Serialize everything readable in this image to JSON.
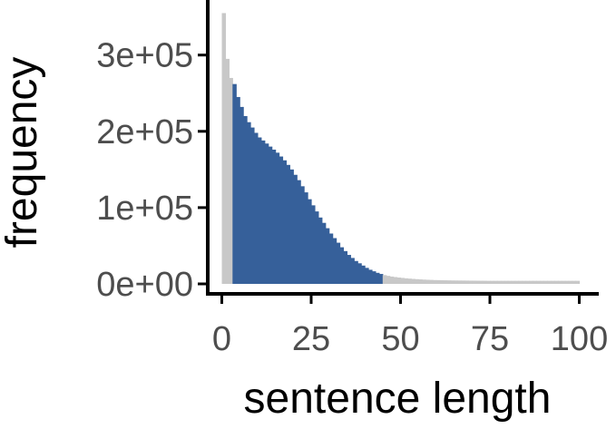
{
  "chart_data": {
    "type": "bar",
    "title": "",
    "xlabel": "sentence length",
    "ylabel": "frequency",
    "xlim": [
      -2,
      103
    ],
    "ylim": [
      0,
      360000
    ],
    "grid": false,
    "x_ticks": [
      0,
      25,
      50,
      75,
      100
    ],
    "x_tick_labels": [
      "0",
      "25",
      "50",
      "75",
      "100"
    ],
    "y_ticks": [
      0,
      100000,
      200000,
      300000
    ],
    "y_tick_labels": [
      "0e+00",
      "1e+05",
      "2e+05",
      "3e+05"
    ],
    "highlight_range": [
      4,
      45
    ],
    "colors": {
      "highlight": "#36609a",
      "other": "#c8c8c8",
      "axis": "#000000",
      "tick_text": "#4d4d4d"
    },
    "x": [
      1,
      2,
      3,
      4,
      5,
      6,
      7,
      8,
      9,
      10,
      11,
      12,
      13,
      14,
      15,
      16,
      17,
      18,
      19,
      20,
      21,
      22,
      23,
      24,
      25,
      26,
      27,
      28,
      29,
      30,
      31,
      32,
      33,
      34,
      35,
      36,
      37,
      38,
      39,
      40,
      41,
      42,
      43,
      44,
      45,
      46,
      47,
      48,
      49,
      50,
      51,
      52,
      53,
      54,
      55,
      56,
      57,
      58,
      59,
      60,
      61,
      62,
      63,
      64,
      65,
      66,
      67,
      68,
      69,
      70,
      71,
      72,
      73,
      74,
      75,
      76,
      77,
      78,
      79,
      80,
      81,
      82,
      83,
      84,
      85,
      86,
      87,
      88,
      89,
      90,
      91,
      92,
      93,
      94,
      95,
      96,
      97,
      98,
      99,
      100
    ],
    "values": [
      355000,
      295000,
      270000,
      262000,
      245000,
      232000,
      220000,
      212000,
      205000,
      198000,
      192000,
      188000,
      184000,
      180000,
      176000,
      172000,
      167000,
      162000,
      156000,
      150000,
      143000,
      136000,
      128000,
      120000,
      111000,
      103000,
      95000,
      87000,
      80000,
      73000,
      66000,
      60000,
      54000,
      48000,
      43000,
      38000,
      34000,
      30000,
      27000,
      24000,
      21000,
      18500,
      16500,
      14500,
      13000,
      11500,
      10500,
      9600,
      8900,
      8300,
      7800,
      7300,
      6900,
      6500,
      6200,
      5900,
      5600,
      5400,
      5200,
      5000,
      4900,
      4800,
      4700,
      4600,
      4500,
      4450,
      4400,
      4350,
      4300,
      4250,
      4200,
      4150,
      4100,
      4050,
      4000,
      4000,
      4000,
      4000,
      4000,
      4000,
      4000,
      4000,
      4000,
      4000,
      4000,
      4000,
      4000,
      4000,
      4000,
      4000,
      4000,
      4000,
      4000,
      4000,
      4000,
      4000,
      4000,
      4000,
      4000,
      4000
    ]
  }
}
